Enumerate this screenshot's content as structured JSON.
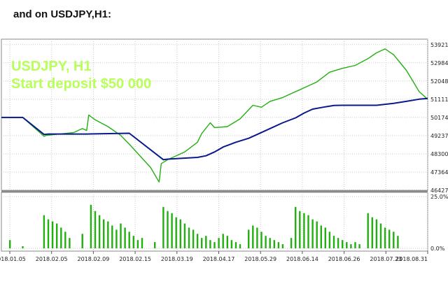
{
  "heading": "and on USDJPY,H1:",
  "overlay": {
    "symbol": "USDJPY, H1",
    "deposit": "Start deposit $50 000"
  },
  "colors": {
    "balance": "#0a1a8a",
    "equity": "#22b010",
    "deposit_load": "#22b010",
    "grid": "#c9c9c9",
    "text_overlay": "#b8ff5a"
  },
  "chart_data": [
    {
      "type": "line",
      "title": "",
      "x_ticks": [
        "2018.01.05",
        "2018.02.05",
        "2018.02.09",
        "2018.02.15",
        "2018.03.19",
        "2018.04.17",
        "2018.05.29",
        "2018.06.14",
        "2018.06.26",
        "2018.07.23",
        "2018.08.31"
      ],
      "y_ticks": [
        "53921",
        "52984",
        "52048",
        "51111",
        "50174",
        "49237",
        "48300",
        "47364",
        "46427"
      ],
      "ylim": [
        46427,
        54200
      ],
      "grid": true,
      "series": [
        {
          "color": "#0a1a8a",
          "x": [
            0,
            0.5,
            1,
            1.1,
            2,
            3,
            3.8,
            3.9,
            4.6,
            4.8,
            5,
            5.2,
            5.5,
            5.8,
            6,
            6.3,
            6.6,
            6.9,
            7.1,
            7.3,
            7.6,
            7.8,
            8,
            8.3,
            8.6,
            8.8,
            9,
            9.2,
            9.5,
            9.8,
            10
          ],
          "values": [
            50174,
            50174,
            49300,
            49320,
            49320,
            49360,
            48000,
            48030,
            48120,
            48200,
            48400,
            48650,
            48900,
            49100,
            49300,
            49600,
            49900,
            50150,
            50400,
            50600,
            50720,
            50790,
            50800,
            50800,
            50800,
            50800,
            50850,
            50900,
            51000,
            51111,
            51150
          ]
        },
        {
          "color": "#22b010",
          "x": [
            0,
            0.5,
            1,
            1.05,
            1.7,
            1.9,
            2,
            2.05,
            2.2,
            2.5,
            2.8,
            3,
            3.5,
            3.7,
            3.75,
            3.9,
            4.3,
            4.6,
            4.7,
            4.9,
            5,
            5.3,
            5.6,
            5.9,
            6.1,
            6.3,
            6.6,
            6.8,
            7,
            7.2,
            7.4,
            7.7,
            8,
            8.3,
            8.6,
            8.8,
            9,
            9.2,
            9.5,
            9.8,
            10
          ],
          "values": [
            50174,
            50174,
            49200,
            49250,
            49400,
            49600,
            49500,
            50300,
            50050,
            49700,
            49250,
            48800,
            47600,
            46850,
            47800,
            48000,
            48400,
            48900,
            49350,
            49900,
            49650,
            49700,
            50100,
            50800,
            50700,
            51000,
            51200,
            51400,
            51600,
            51800,
            52000,
            52500,
            52700,
            52850,
            53200,
            53500,
            53700,
            53400,
            52600,
            51500,
            51111
          ]
        }
      ]
    },
    {
      "type": "bar",
      "title": "",
      "y_ticks": [
        "25.0%",
        "0.0%"
      ],
      "ylim": [
        0,
        25
      ],
      "series": [
        {
          "color": "#22b010",
          "x": [
            0.2,
            0.5,
            1,
            1.1,
            1.2,
            1.3,
            1.4,
            1.5,
            1.6,
            1.9,
            2.1,
            2.2,
            2.3,
            2.4,
            2.5,
            2.6,
            2.7,
            2.8,
            2.9,
            3.0,
            3.1,
            3.2,
            3.3,
            3.6,
            3.8,
            3.9,
            4.0,
            4.1,
            4.2,
            4.3,
            4.4,
            4.5,
            4.6,
            4.7,
            4.8,
            4.9,
            5.0,
            5.1,
            5.2,
            5.3,
            5.4,
            5.5,
            5.6,
            5.8,
            5.9,
            6.0,
            6.1,
            6.2,
            6.3,
            6.4,
            6.5,
            6.6,
            6.8,
            6.9,
            7.0,
            7.1,
            7.2,
            7.3,
            7.4,
            7.5,
            7.6,
            7.7,
            7.8,
            7.9,
            8.0,
            8.1,
            8.2,
            8.3,
            8.4,
            8.6,
            8.7,
            8.8,
            8.9,
            9.0,
            9.1,
            9.2,
            9.3
          ],
          "values": [
            4,
            1,
            16,
            14,
            13,
            12,
            10,
            8,
            5,
            7,
            21,
            18,
            16,
            14,
            13,
            11,
            9,
            12,
            10,
            8,
            6,
            4,
            5,
            3,
            20,
            18,
            17,
            15,
            14,
            12,
            10,
            9,
            7,
            5,
            6,
            4,
            3,
            5,
            7,
            6,
            4,
            3,
            2,
            9,
            11,
            10,
            8,
            6,
            5,
            4,
            3,
            2,
            5,
            20,
            18,
            17,
            16,
            14,
            13,
            11,
            10,
            8,
            6,
            5,
            4,
            3,
            2,
            3,
            2,
            17,
            15,
            14,
            12,
            10,
            9,
            8,
            6
          ]
        }
      ]
    }
  ]
}
